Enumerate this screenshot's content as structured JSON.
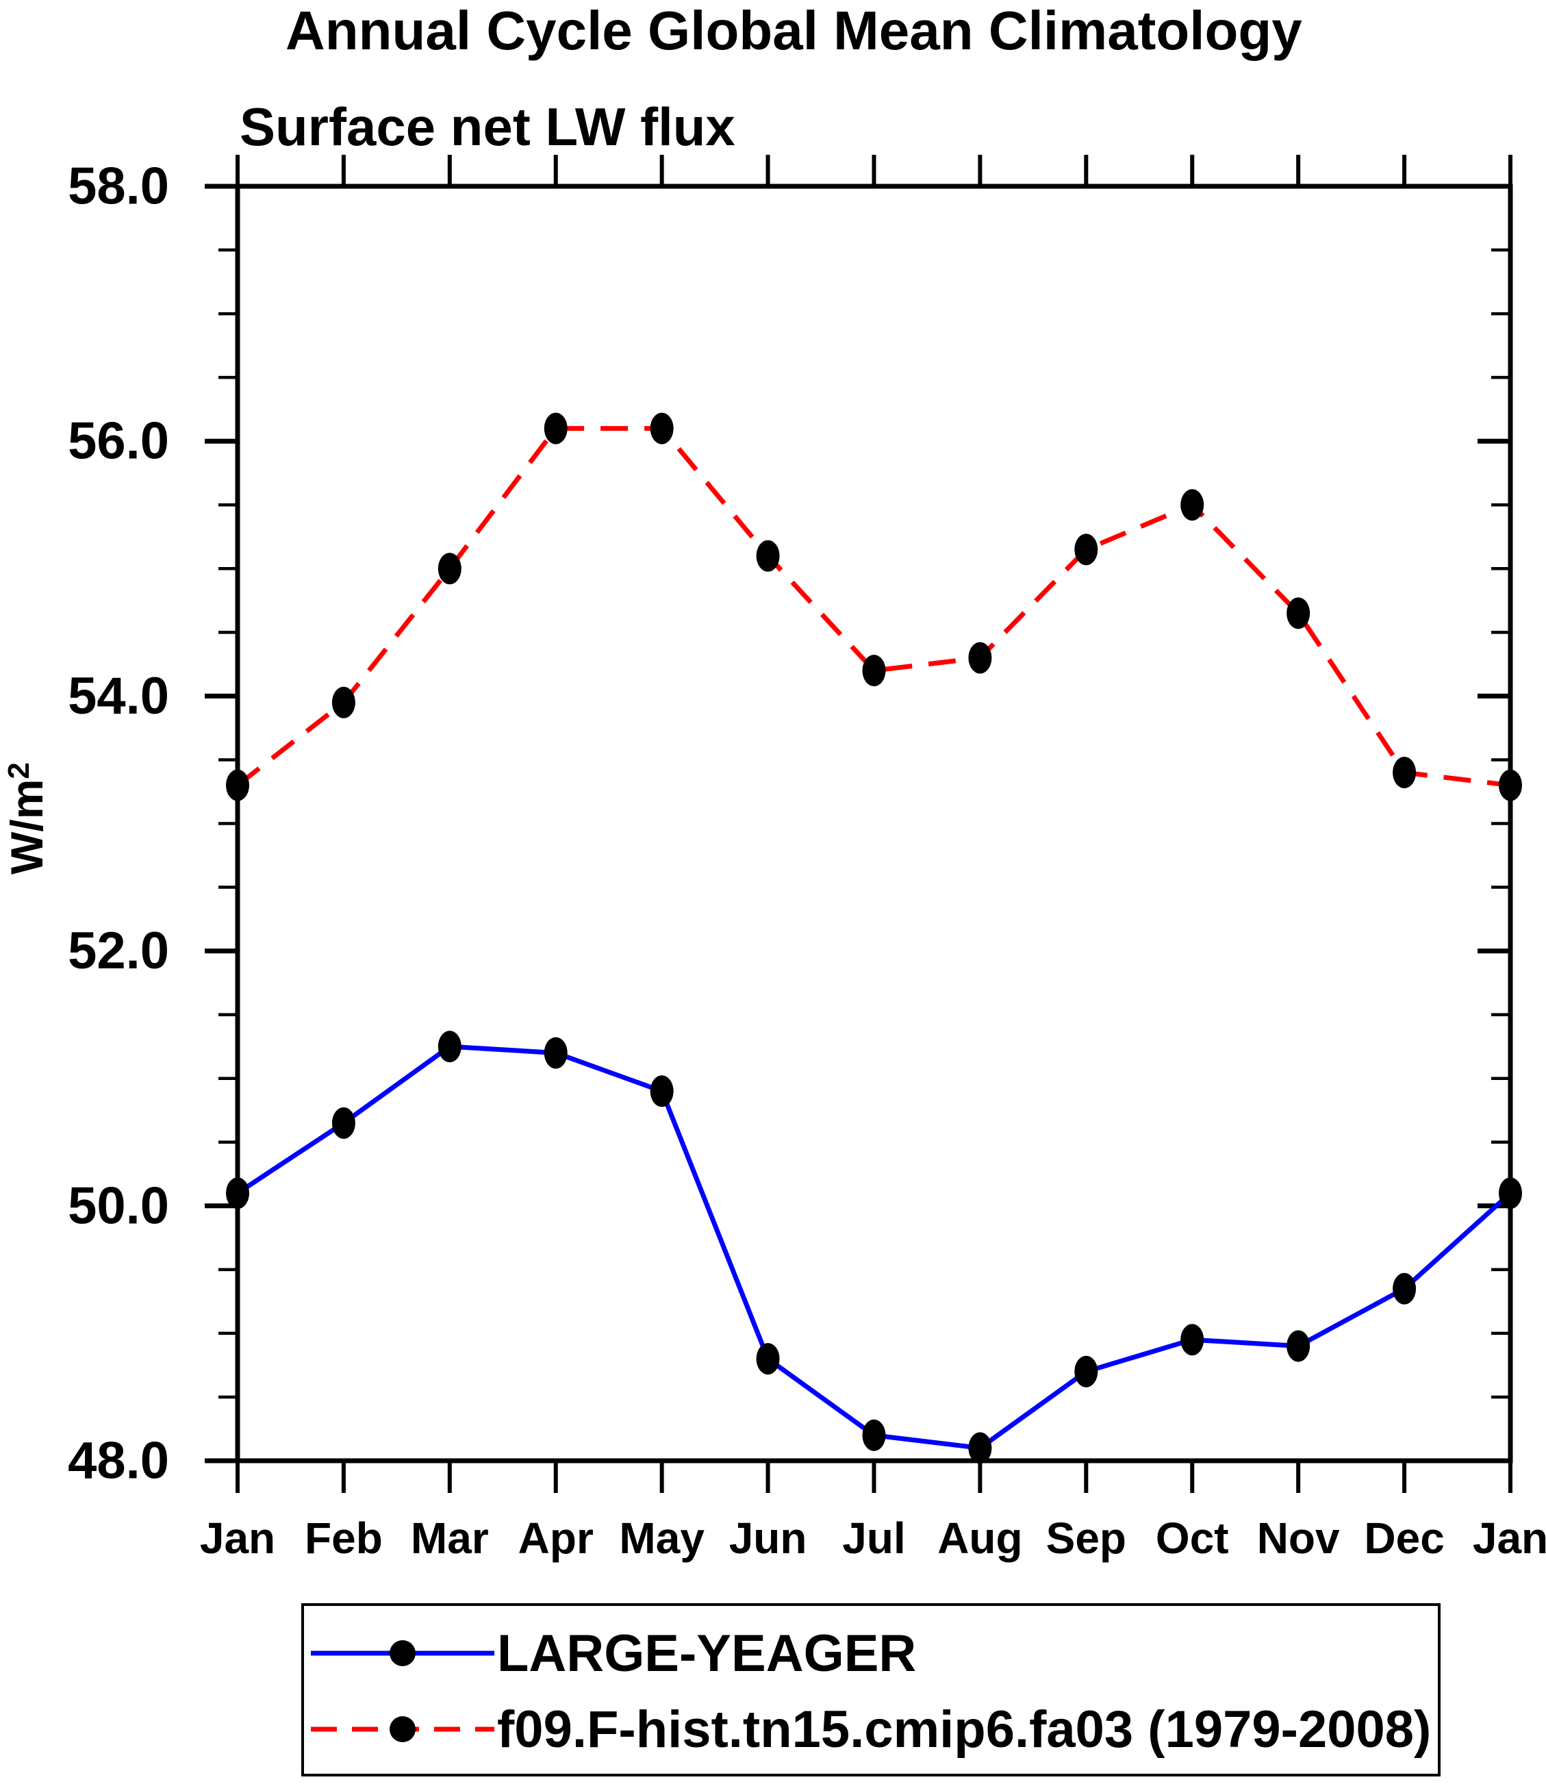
{
  "title": "Annual Cycle Global Mean Climatology",
  "subtitle": "Surface net LW flux",
  "ylabel": {
    "base": "W/m",
    "exponent": "2"
  },
  "colors": {
    "series1": "#0000ff",
    "series2": "#ff0000",
    "marker": "#000000",
    "axis": "#000000",
    "background": "#ffffff"
  },
  "chart_data": {
    "type": "line",
    "categories": [
      "Jan",
      "Feb",
      "Mar",
      "Apr",
      "May",
      "Jun",
      "Jul",
      "Aug",
      "Sep",
      "Oct",
      "Nov",
      "Dec",
      "Jan"
    ],
    "series": [
      {
        "name": "LARGE-YEAGER",
        "color": "#0000ff",
        "line_style": "solid",
        "marker": "filled-ellipse",
        "marker_color": "#000000",
        "values": [
          50.1,
          50.65,
          51.25,
          51.2,
          50.9,
          48.8,
          48.2,
          48.1,
          48.7,
          48.95,
          48.9,
          49.35,
          50.1
        ]
      },
      {
        "name": "f09.F-hist.tn15.cmip6.fa03 (1979-2008)",
        "color": "#ff0000",
        "line_style": "dashed",
        "marker": "filled-ellipse",
        "marker_color": "#000000",
        "values": [
          53.3,
          53.95,
          55.0,
          56.1,
          56.1,
          55.1,
          54.2,
          54.3,
          55.15,
          55.5,
          54.65,
          53.4,
          53.3
        ]
      }
    ],
    "xlabel": "",
    "ylabel": "W/m2",
    "ylim": [
      48.0,
      58.0
    ],
    "yticks_major": [
      {
        "value": 48.0,
        "label": "48.0"
      },
      {
        "value": 50.0,
        "label": "50.0"
      },
      {
        "value": 52.0,
        "label": "52.0"
      },
      {
        "value": 54.0,
        "label": "54.0"
      },
      {
        "value": 56.0,
        "label": "56.0"
      },
      {
        "value": 58.0,
        "label": "58.0"
      }
    ],
    "ytick_minor_step": 0.5,
    "grid": false,
    "legend_position": "bottom"
  }
}
